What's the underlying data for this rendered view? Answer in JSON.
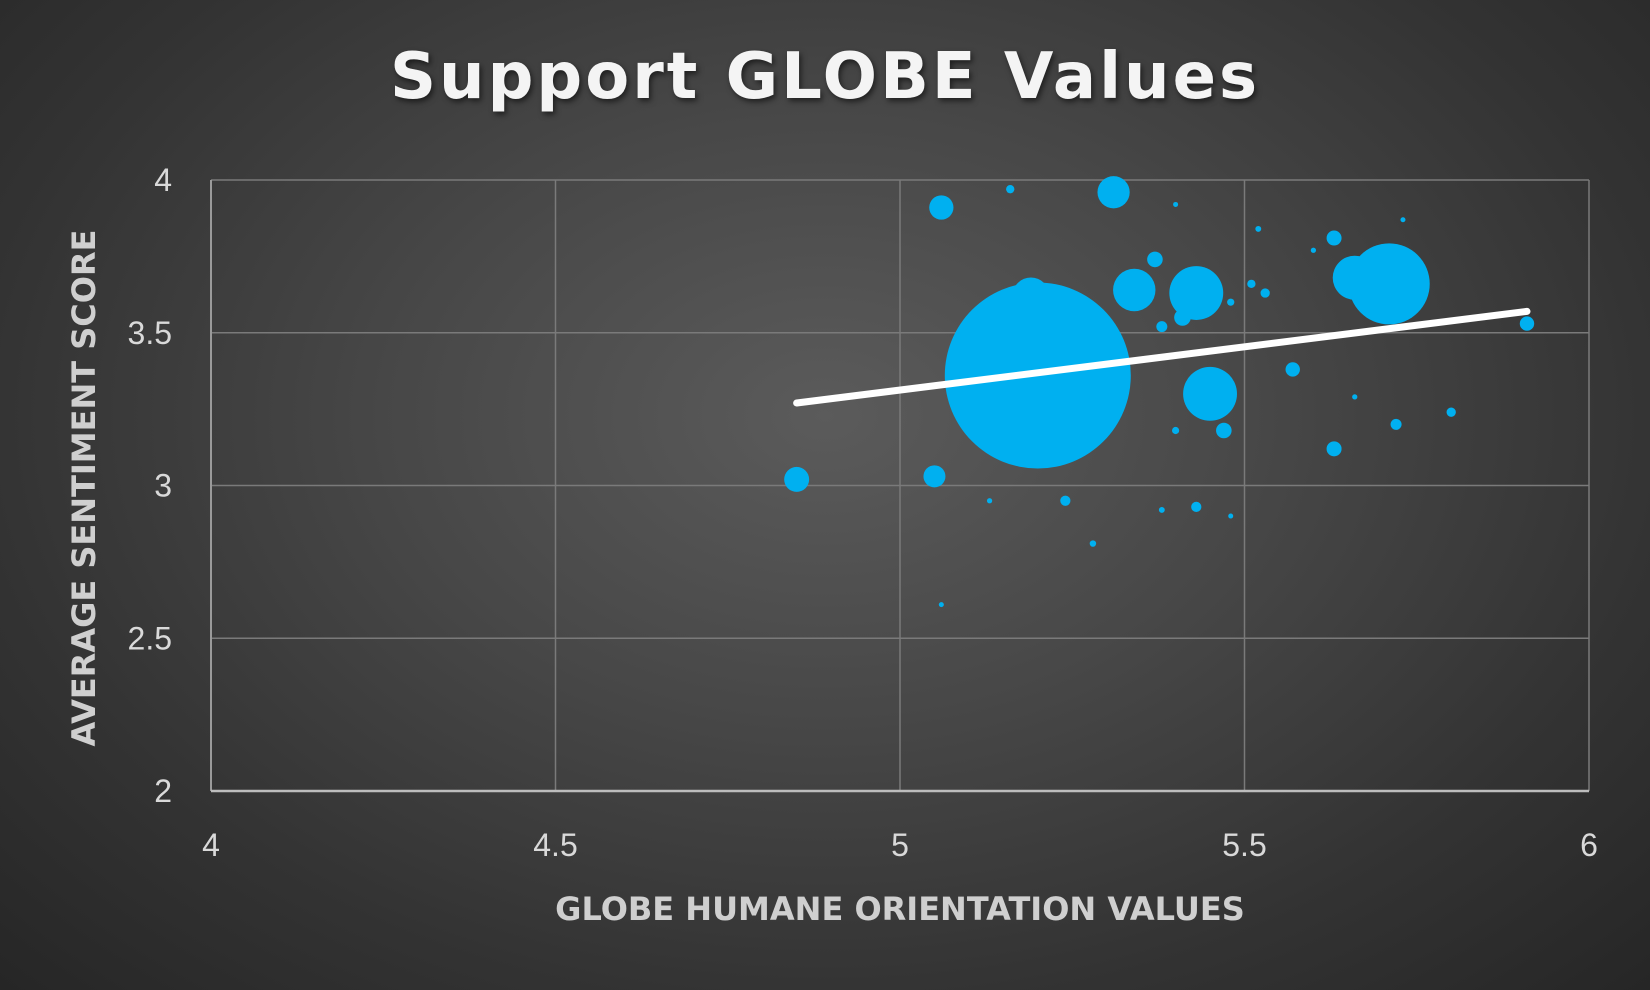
{
  "chart_data": {
    "type": "scatter",
    "title": "Support GLOBE Values",
    "xlabel": "GLOBE HUMANE ORIENTATION VALUES",
    "ylabel": "AVERAGE SENTIMENT SCORE",
    "xlim": [
      4,
      6
    ],
    "ylim": [
      2,
      4
    ],
    "x_ticks": [
      4,
      4.5,
      5,
      5.5,
      6
    ],
    "x_tick_labels": [
      "4",
      "4.5",
      "5",
      "5.5",
      "6"
    ],
    "y_ticks": [
      2,
      2.5,
      3,
      3.5,
      4
    ],
    "y_tick_labels": [
      "2",
      "2.5",
      "3",
      "3.5",
      "4"
    ],
    "grid": true,
    "legend": "none",
    "point_color": "#00b0f0",
    "trendline_color": "#ffffff",
    "points": [
      {
        "x": 5.2,
        "y": 3.36,
        "size": 10000
      },
      {
        "x": 5.19,
        "y": 3.62,
        "size": 400
      },
      {
        "x": 5.71,
        "y": 3.66,
        "size": 1900
      },
      {
        "x": 5.66,
        "y": 3.68,
        "size": 560
      },
      {
        "x": 5.43,
        "y": 3.63,
        "size": 840
      },
      {
        "x": 5.45,
        "y": 3.3,
        "size": 840
      },
      {
        "x": 5.34,
        "y": 3.64,
        "size": 520
      },
      {
        "x": 5.31,
        "y": 3.96,
        "size": 300
      },
      {
        "x": 5.06,
        "y": 3.91,
        "size": 170
      },
      {
        "x": 4.85,
        "y": 3.02,
        "size": 180
      },
      {
        "x": 5.05,
        "y": 3.03,
        "size": 140
      },
      {
        "x": 5.37,
        "y": 3.74,
        "size": 70
      },
      {
        "x": 5.41,
        "y": 3.55,
        "size": 80
      },
      {
        "x": 5.63,
        "y": 3.81,
        "size": 65
      },
      {
        "x": 5.47,
        "y": 3.18,
        "size": 70
      },
      {
        "x": 5.63,
        "y": 3.12,
        "size": 65
      },
      {
        "x": 5.57,
        "y": 3.38,
        "size": 60
      },
      {
        "x": 5.91,
        "y": 3.53,
        "size": 60
      },
      {
        "x": 5.38,
        "y": 3.52,
        "size": 35
      },
      {
        "x": 5.72,
        "y": 3.2,
        "size": 35
      },
      {
        "x": 5.43,
        "y": 2.93,
        "size": 30
      },
      {
        "x": 5.24,
        "y": 2.95,
        "size": 30
      },
      {
        "x": 5.8,
        "y": 3.24,
        "size": 25
      },
      {
        "x": 5.53,
        "y": 3.63,
        "size": 25
      },
      {
        "x": 5.51,
        "y": 3.66,
        "size": 20
      },
      {
        "x": 5.16,
        "y": 3.97,
        "size": 20
      },
      {
        "x": 5.4,
        "y": 3.18,
        "size": 15
      },
      {
        "x": 5.48,
        "y": 3.6,
        "size": 15
      },
      {
        "x": 5.28,
        "y": 2.81,
        "size": 12
      },
      {
        "x": 5.52,
        "y": 3.84,
        "size": 10
      },
      {
        "x": 5.38,
        "y": 2.92,
        "size": 10
      },
      {
        "x": 5.66,
        "y": 3.29,
        "size": 8
      },
      {
        "x": 5.13,
        "y": 2.95,
        "size": 8
      },
      {
        "x": 5.6,
        "y": 3.77,
        "size": 8
      },
      {
        "x": 5.73,
        "y": 3.87,
        "size": 6
      },
      {
        "x": 5.06,
        "y": 2.61,
        "size": 6
      },
      {
        "x": 5.4,
        "y": 3.92,
        "size": 5
      },
      {
        "x": 5.48,
        "y": 2.9,
        "size": 5
      }
    ],
    "trendline": {
      "x": [
        4.85,
        5.91
      ],
      "y": [
        3.27,
        3.57
      ]
    }
  }
}
